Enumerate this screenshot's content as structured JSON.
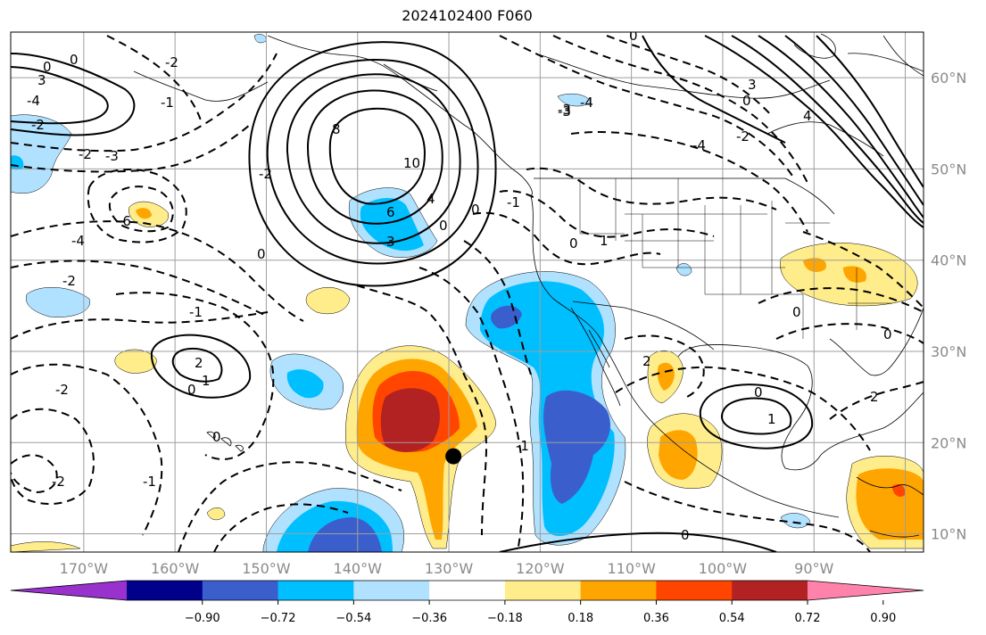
{
  "title": "2024102400 F060",
  "map": {
    "lon_range": [
      -178,
      -78
    ],
    "lat_range": [
      8,
      65
    ],
    "meridians": [
      -170,
      -160,
      -150,
      -140,
      -130,
      -120,
      -110,
      -100,
      -90,
      -80
    ],
    "parallels": [
      10,
      20,
      30,
      40,
      50,
      60
    ],
    "lon_labels": [
      "170°W",
      "160°W",
      "150°W",
      "140°W",
      "130°W",
      "120°W",
      "110°W",
      "100°W",
      "90°W"
    ],
    "lat_labels": [
      "10°N",
      "20°N",
      "30°N",
      "40°N",
      "50°N",
      "60°N"
    ],
    "grid": true
  },
  "colorbar": {
    "colors": [
      "#9932cc",
      "#00008b",
      "#3a5fcd",
      "#00bfff",
      "#b0e2ff",
      "#ffffff",
      "#ffec8b",
      "#ffa500",
      "#ff4500",
      "#b22222",
      "#ff82ab"
    ],
    "ticks": [
      "−0.90",
      "−0.72",
      "−0.54",
      "−0.36",
      "−0.18",
      "0.18",
      "0.36",
      "0.54",
      "0.72",
      "0.90"
    ]
  },
  "contour_labels": [
    "0",
    "2",
    "4",
    "6",
    "8",
    "10",
    "-1",
    "-2",
    "-3",
    "-4",
    "-6",
    "1",
    "3"
  ],
  "marker": {
    "name": "storm-center",
    "lon": -129.5,
    "lat": 18.5
  }
}
